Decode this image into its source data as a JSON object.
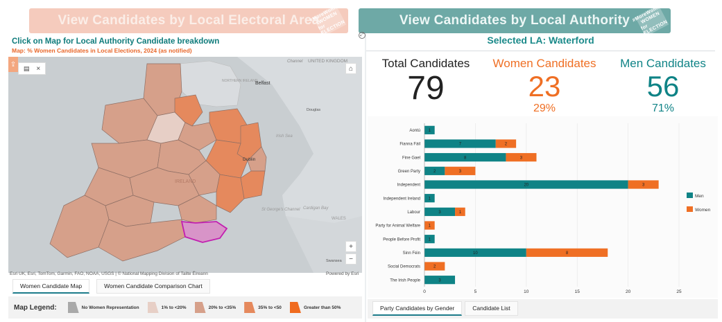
{
  "banners": {
    "lea": "View Candidates by Local Electoral Area",
    "la": "View Candidates by Local Authority",
    "badge_top": "#MoreWomen",
    "badge_mid": "WOMEN",
    "badge_bottom": "for ELECTION"
  },
  "map_panel": {
    "title": "Click on Map for Local Authority Candidate breakdown",
    "subtitle": "Map: % Women Candidates in Local Elections, 2024 (as notified)",
    "attribution": "Esri UK, Esri, TomTom, Garmin, FAO, NOAA, USGS | © National Mapping Division of Tailte Éireann",
    "powered_by": "Powered by Esri",
    "place_labels": {
      "channel": "Channel",
      "united_kingdom": "UNITED KINGDOM",
      "northern_ireland": "NORTHERN IRELAND",
      "belfast": "Belfast",
      "douglas": "Douglas",
      "irish_sea": "Irish Sea",
      "dublin": "Dublin",
      "ireland": "IRELAND",
      "st_georges_channel": "St George's Channel",
      "cardigan_bay": "Cardigan Bay",
      "wales": "WALES",
      "swansea": "Swansea"
    },
    "zoom_in": "+",
    "zoom_out": "−",
    "close": "×"
  },
  "left_tabs": [
    "Women Candidate Map",
    "Women Candidate Comparison Chart"
  ],
  "legend": {
    "title": "Map Legend:",
    "items": [
      {
        "label": "No Women Representation",
        "color": "#a9a9a9"
      },
      {
        "label": "1% to <20%",
        "color": "#e7cfc6"
      },
      {
        "label": "20% to <35%",
        "color": "#d6a08a"
      },
      {
        "label": "35% to <50",
        "color": "#e5895d"
      },
      {
        "label": "Greater than 50%",
        "color": "#f06b1f"
      }
    ]
  },
  "la_panel": {
    "title": "Selected LA: Waterford",
    "total_label": "Total Candidates",
    "total_value": "79",
    "women_label": "Women Candidates",
    "women_value": "23",
    "women_pct": "29%",
    "men_label": "Men Candidates",
    "men_value": "56",
    "men_pct": "71%"
  },
  "colors": {
    "men": "#0f8386",
    "women": "#ef6f24",
    "total": "#222222"
  },
  "chart_data": {
    "type": "bar",
    "orientation": "horizontal",
    "stacked": true,
    "categories": [
      "Aontú",
      "Fianna Fáil",
      "Fine Gael",
      "Green Party",
      "Independent",
      "Independent Ireland",
      "Labour",
      "Party for Animal Welfare",
      "People Before Profit",
      "Sinn Féin",
      "Social Democrats",
      "The Irish People"
    ],
    "series": [
      {
        "name": "Men",
        "values": [
          1,
          7,
          8,
          2,
          20,
          1,
          3,
          0,
          1,
          10,
          0,
          3
        ]
      },
      {
        "name": "Women",
        "values": [
          0,
          2,
          3,
          3,
          3,
          0,
          1,
          1,
          0,
          8,
          2,
          0
        ]
      }
    ],
    "xlim": [
      0,
      25
    ],
    "xticks": [
      "0",
      "5",
      "10",
      "15",
      "20",
      "25"
    ],
    "legend_position": "right"
  },
  "right_tabs": [
    "Party Candidates by Gender",
    "Candidate List"
  ]
}
